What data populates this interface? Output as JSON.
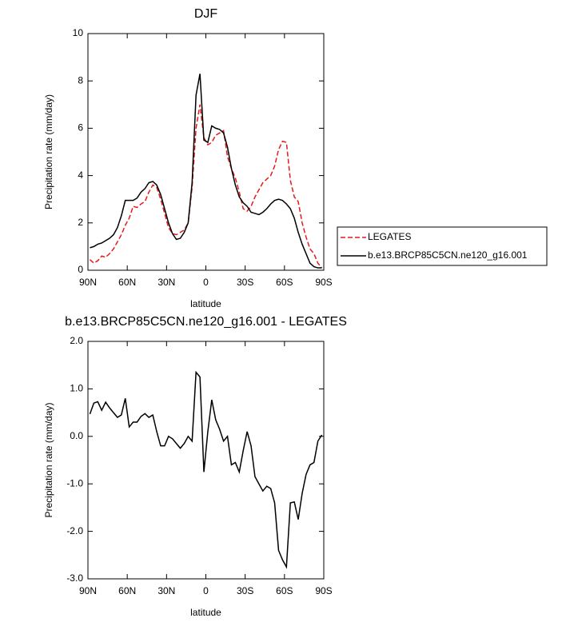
{
  "chart_data": [
    {
      "type": "line",
      "title": "DJF",
      "xlabel": "latitude",
      "ylabel": "Precipitation rate (mm/day)",
      "x": [
        88.5,
        85.5,
        82.5,
        79.5,
        76.5,
        73.5,
        70.5,
        67.5,
        64.5,
        61.5,
        58.5,
        55.5,
        52.5,
        49.5,
        46.5,
        43.5,
        40.5,
        37.5,
        34.5,
        31.5,
        28.5,
        25.5,
        22.5,
        19.5,
        16.5,
        13.5,
        10.5,
        7.5,
        4.5,
        1.5,
        -1.5,
        -4.5,
        -7.5,
        -10.5,
        -13.5,
        -16.5,
        -19.5,
        -22.5,
        -25.5,
        -28.5,
        -31.5,
        -34.5,
        -37.5,
        -40.5,
        -43.5,
        -46.5,
        -49.5,
        -52.5,
        -55.5,
        -58.5,
        -61.5,
        -64.5,
        -67.5,
        -70.5,
        -73.5,
        -76.5,
        -79.5,
        -82.5,
        -85.5,
        -88.5
      ],
      "series": [
        {
          "name": "LEGATES",
          "color": "#e41a1c",
          "line_style": "dashed",
          "values": [
            0.45,
            0.3,
            0.4,
            0.6,
            0.55,
            0.7,
            0.9,
            1.2,
            1.5,
            1.9,
            2.2,
            2.7,
            2.65,
            2.8,
            2.9,
            3.3,
            3.6,
            3.5,
            3.0,
            2.4,
            1.8,
            1.55,
            1.5,
            1.6,
            1.7,
            2.0,
            3.5,
            6.0,
            7.0,
            5.6,
            5.3,
            5.4,
            5.7,
            5.8,
            5.9,
            4.8,
            4.3,
            3.9,
            3.3,
            2.6,
            2.5,
            2.7,
            3.1,
            3.4,
            3.7,
            3.85,
            4.0,
            4.4,
            5.1,
            5.45,
            5.4,
            3.8,
            3.1,
            2.9,
            2.0,
            1.4,
            0.9,
            0.7,
            0.3,
            0.1
          ]
        },
        {
          "name": "b.e13.BRCP85C5CN.ne120_g16.001",
          "color": "#000000",
          "line_style": "solid",
          "values": [
            0.95,
            1.0,
            1.1,
            1.15,
            1.25,
            1.35,
            1.5,
            1.8,
            2.3,
            2.95,
            2.95,
            2.95,
            3.05,
            3.3,
            3.45,
            3.7,
            3.75,
            3.6,
            3.2,
            2.6,
            2.0,
            1.55,
            1.3,
            1.35,
            1.6,
            2.0,
            3.7,
            7.4,
            8.3,
            5.5,
            5.4,
            6.1,
            6.0,
            5.95,
            5.8,
            5.2,
            4.3,
            3.6,
            3.1,
            2.85,
            2.7,
            2.45,
            2.4,
            2.35,
            2.45,
            2.6,
            2.8,
            2.95,
            3.0,
            2.95,
            2.8,
            2.6,
            2.2,
            1.6,
            1.1,
            0.7,
            0.3,
            0.15,
            0.1,
            0.1
          ]
        }
      ],
      "xlim": [
        90,
        -90
      ],
      "xticks": [
        {
          "value": 90,
          "label": "90N"
        },
        {
          "value": 60,
          "label": "60N"
        },
        {
          "value": 30,
          "label": "30N"
        },
        0,
        {
          "value": -30,
          "label": "30S"
        },
        {
          "value": -60,
          "label": "60S"
        },
        {
          "value": -90,
          "label": "90S"
        }
      ],
      "ylim": [
        0,
        10
      ],
      "yticks": [
        0,
        2,
        4,
        6,
        8,
        10
      ],
      "legend": "right"
    },
    {
      "type": "line",
      "title": "b.e13.BRCP85C5CN.ne120_g16.001 - LEGATES",
      "xlabel": "latitude",
      "ylabel": "Precipitation rate (mm/day)",
      "x": [
        88.5,
        85.5,
        82.5,
        79.5,
        76.5,
        73.5,
        70.5,
        67.5,
        64.5,
        61.5,
        58.5,
        55.5,
        52.5,
        49.5,
        46.5,
        43.5,
        40.5,
        37.5,
        34.5,
        31.5,
        28.5,
        25.5,
        22.5,
        19.5,
        16.5,
        13.5,
        10.5,
        7.5,
        4.5,
        1.5,
        -1.5,
        -4.5,
        -7.5,
        -10.5,
        -13.5,
        -16.5,
        -19.5,
        -22.5,
        -25.5,
        -28.5,
        -31.5,
        -34.5,
        -37.5,
        -40.5,
        -43.5,
        -46.5,
        -49.5,
        -52.5,
        -55.5,
        -58.5,
        -61.5,
        -64.5,
        -67.5,
        -70.5,
        -73.5,
        -76.5,
        -79.5,
        -82.5,
        -85.5,
        -88.5
      ],
      "values": [
        0.47,
        0.7,
        0.73,
        0.55,
        0.72,
        0.6,
        0.5,
        0.4,
        0.45,
        0.8,
        0.2,
        0.3,
        0.3,
        0.42,
        0.48,
        0.4,
        0.45,
        0.1,
        -0.2,
        -0.2,
        0.0,
        -0.05,
        -0.15,
        -0.25,
        -0.15,
        0.0,
        -0.1,
        1.35,
        1.25,
        -0.75,
        0.1,
        0.77,
        0.35,
        0.15,
        -0.1,
        0.0,
        -0.6,
        -0.55,
        -0.75,
        -0.3,
        0.1,
        -0.2,
        -0.85,
        -1.0,
        -1.15,
        -1.05,
        -1.1,
        -1.4,
        -2.4,
        -2.6,
        -2.75,
        -1.4,
        -1.38,
        -1.75,
        -1.2,
        -0.8,
        -0.6,
        -0.55,
        -0.1,
        0.03
      ],
      "color": "#000000",
      "xlim": [
        90,
        -90
      ],
      "xticks": [
        {
          "value": 90,
          "label": "90N"
        },
        {
          "value": 60,
          "label": "60N"
        },
        {
          "value": 30,
          "label": "30N"
        },
        0,
        {
          "value": -30,
          "label": "30S"
        },
        {
          "value": -60,
          "label": "60S"
        },
        {
          "value": -90,
          "label": "90S"
        }
      ],
      "ylim": [
        -3,
        2
      ],
      "yticks": [
        {
          "value": 2,
          "label": "2.0"
        },
        {
          "value": 1,
          "label": "1.0"
        },
        {
          "value": 0,
          "label": "0.0"
        },
        {
          "value": -1,
          "label": "-1.0"
        },
        {
          "value": -2,
          "label": "-2.0"
        },
        {
          "value": -3,
          "label": "-3.0"
        }
      ]
    }
  ]
}
